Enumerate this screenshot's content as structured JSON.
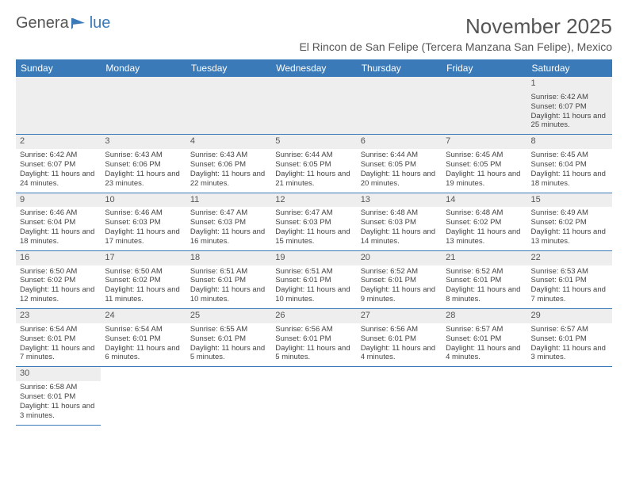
{
  "logo": {
    "text_left": "Genera",
    "text_right": "lue",
    "brand_color": "#3a7ab8"
  },
  "title": "November 2025",
  "location": "El Rincon de San Felipe (Tercera Manzana San Felipe), Mexico",
  "colors": {
    "header_bg": "#3a7ab8",
    "header_fg": "#ffffff",
    "row_divider": "#3a7ab8",
    "daynum_bg": "#eeeeee",
    "text": "#444444"
  },
  "days_of_week": [
    "Sunday",
    "Monday",
    "Tuesday",
    "Wednesday",
    "Thursday",
    "Friday",
    "Saturday"
  ],
  "weeks": [
    [
      null,
      null,
      null,
      null,
      null,
      null,
      {
        "n": "1",
        "sr": "Sunrise: 6:42 AM",
        "ss": "Sunset: 6:07 PM",
        "dl": "Daylight: 11 hours and 25 minutes."
      }
    ],
    [
      {
        "n": "2",
        "sr": "Sunrise: 6:42 AM",
        "ss": "Sunset: 6:07 PM",
        "dl": "Daylight: 11 hours and 24 minutes."
      },
      {
        "n": "3",
        "sr": "Sunrise: 6:43 AM",
        "ss": "Sunset: 6:06 PM",
        "dl": "Daylight: 11 hours and 23 minutes."
      },
      {
        "n": "4",
        "sr": "Sunrise: 6:43 AM",
        "ss": "Sunset: 6:06 PM",
        "dl": "Daylight: 11 hours and 22 minutes."
      },
      {
        "n": "5",
        "sr": "Sunrise: 6:44 AM",
        "ss": "Sunset: 6:05 PM",
        "dl": "Daylight: 11 hours and 21 minutes."
      },
      {
        "n": "6",
        "sr": "Sunrise: 6:44 AM",
        "ss": "Sunset: 6:05 PM",
        "dl": "Daylight: 11 hours and 20 minutes."
      },
      {
        "n": "7",
        "sr": "Sunrise: 6:45 AM",
        "ss": "Sunset: 6:05 PM",
        "dl": "Daylight: 11 hours and 19 minutes."
      },
      {
        "n": "8",
        "sr": "Sunrise: 6:45 AM",
        "ss": "Sunset: 6:04 PM",
        "dl": "Daylight: 11 hours and 18 minutes."
      }
    ],
    [
      {
        "n": "9",
        "sr": "Sunrise: 6:46 AM",
        "ss": "Sunset: 6:04 PM",
        "dl": "Daylight: 11 hours and 18 minutes."
      },
      {
        "n": "10",
        "sr": "Sunrise: 6:46 AM",
        "ss": "Sunset: 6:03 PM",
        "dl": "Daylight: 11 hours and 17 minutes."
      },
      {
        "n": "11",
        "sr": "Sunrise: 6:47 AM",
        "ss": "Sunset: 6:03 PM",
        "dl": "Daylight: 11 hours and 16 minutes."
      },
      {
        "n": "12",
        "sr": "Sunrise: 6:47 AM",
        "ss": "Sunset: 6:03 PM",
        "dl": "Daylight: 11 hours and 15 minutes."
      },
      {
        "n": "13",
        "sr": "Sunrise: 6:48 AM",
        "ss": "Sunset: 6:03 PM",
        "dl": "Daylight: 11 hours and 14 minutes."
      },
      {
        "n": "14",
        "sr": "Sunrise: 6:48 AM",
        "ss": "Sunset: 6:02 PM",
        "dl": "Daylight: 11 hours and 13 minutes."
      },
      {
        "n": "15",
        "sr": "Sunrise: 6:49 AM",
        "ss": "Sunset: 6:02 PM",
        "dl": "Daylight: 11 hours and 13 minutes."
      }
    ],
    [
      {
        "n": "16",
        "sr": "Sunrise: 6:50 AM",
        "ss": "Sunset: 6:02 PM",
        "dl": "Daylight: 11 hours and 12 minutes."
      },
      {
        "n": "17",
        "sr": "Sunrise: 6:50 AM",
        "ss": "Sunset: 6:02 PM",
        "dl": "Daylight: 11 hours and 11 minutes."
      },
      {
        "n": "18",
        "sr": "Sunrise: 6:51 AM",
        "ss": "Sunset: 6:01 PM",
        "dl": "Daylight: 11 hours and 10 minutes."
      },
      {
        "n": "19",
        "sr": "Sunrise: 6:51 AM",
        "ss": "Sunset: 6:01 PM",
        "dl": "Daylight: 11 hours and 10 minutes."
      },
      {
        "n": "20",
        "sr": "Sunrise: 6:52 AM",
        "ss": "Sunset: 6:01 PM",
        "dl": "Daylight: 11 hours and 9 minutes."
      },
      {
        "n": "21",
        "sr": "Sunrise: 6:52 AM",
        "ss": "Sunset: 6:01 PM",
        "dl": "Daylight: 11 hours and 8 minutes."
      },
      {
        "n": "22",
        "sr": "Sunrise: 6:53 AM",
        "ss": "Sunset: 6:01 PM",
        "dl": "Daylight: 11 hours and 7 minutes."
      }
    ],
    [
      {
        "n": "23",
        "sr": "Sunrise: 6:54 AM",
        "ss": "Sunset: 6:01 PM",
        "dl": "Daylight: 11 hours and 7 minutes."
      },
      {
        "n": "24",
        "sr": "Sunrise: 6:54 AM",
        "ss": "Sunset: 6:01 PM",
        "dl": "Daylight: 11 hours and 6 minutes."
      },
      {
        "n": "25",
        "sr": "Sunrise: 6:55 AM",
        "ss": "Sunset: 6:01 PM",
        "dl": "Daylight: 11 hours and 5 minutes."
      },
      {
        "n": "26",
        "sr": "Sunrise: 6:56 AM",
        "ss": "Sunset: 6:01 PM",
        "dl": "Daylight: 11 hours and 5 minutes."
      },
      {
        "n": "27",
        "sr": "Sunrise: 6:56 AM",
        "ss": "Sunset: 6:01 PM",
        "dl": "Daylight: 11 hours and 4 minutes."
      },
      {
        "n": "28",
        "sr": "Sunrise: 6:57 AM",
        "ss": "Sunset: 6:01 PM",
        "dl": "Daylight: 11 hours and 4 minutes."
      },
      {
        "n": "29",
        "sr": "Sunrise: 6:57 AM",
        "ss": "Sunset: 6:01 PM",
        "dl": "Daylight: 11 hours and 3 minutes."
      }
    ],
    [
      {
        "n": "30",
        "sr": "Sunrise: 6:58 AM",
        "ss": "Sunset: 6:01 PM",
        "dl": "Daylight: 11 hours and 3 minutes."
      },
      null,
      null,
      null,
      null,
      null,
      null
    ]
  ]
}
